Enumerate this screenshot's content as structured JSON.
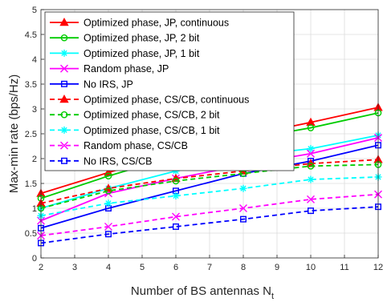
{
  "chart_data": {
    "type": "line",
    "xlabel": "Number of BS antennas N",
    "xlabel_sub": "t",
    "ylabel": "Max-min rate (bps/Hz)",
    "xlim": [
      2,
      12
    ],
    "ylim": [
      0,
      5
    ],
    "xticks": [
      2,
      3,
      4,
      5,
      6,
      7,
      8,
      9,
      10,
      11,
      12
    ],
    "yticks": [
      0,
      0.5,
      1,
      1.5,
      2,
      2.5,
      3,
      3.5,
      4,
      4.5,
      5
    ],
    "grid": true,
    "legend_position": "top-left",
    "x": [
      2,
      4,
      6,
      8,
      10,
      12
    ],
    "series": [
      {
        "name": "Optimized phase, JP, continuous",
        "values": [
          1.3,
          1.72,
          2.12,
          2.45,
          2.73,
          3.03
        ],
        "color": "#ff0000",
        "marker": "triangle",
        "dash": "solid"
      },
      {
        "name": "Optimized phase, JP, 2 bit",
        "values": [
          1.2,
          1.65,
          2.05,
          2.38,
          2.62,
          2.92
        ],
        "color": "#00cc00",
        "marker": "circle",
        "dash": "solid"
      },
      {
        "name": "Optimized phase, JP, 1 bit",
        "values": [
          1.0,
          1.4,
          1.75,
          2.05,
          2.2,
          2.47
        ],
        "color": "#00ffff",
        "marker": "asterisk",
        "dash": "solid"
      },
      {
        "name": "Random phase, JP",
        "values": [
          0.75,
          1.3,
          1.6,
          1.87,
          2.1,
          2.42
        ],
        "color": "#ff00ff",
        "marker": "x",
        "dash": "solid"
      },
      {
        "name": "No IRS, JP",
        "values": [
          0.6,
          1.0,
          1.35,
          1.7,
          1.95,
          2.27
        ],
        "color": "#0000ff",
        "marker": "square",
        "dash": "solid"
      },
      {
        "name": "Optimized phase, CS/CB, continuous",
        "values": [
          1.1,
          1.4,
          1.6,
          1.75,
          1.9,
          1.98
        ],
        "color": "#ff0000",
        "marker": "triangle",
        "dash": "dashed"
      },
      {
        "name": "Optimized phase, CS/CB, 2 bit",
        "values": [
          1.0,
          1.35,
          1.55,
          1.7,
          1.85,
          1.88
        ],
        "color": "#00cc00",
        "marker": "circle",
        "dash": "dashed"
      },
      {
        "name": "Optimized phase, CS/CB, 1 bit",
        "values": [
          0.85,
          1.1,
          1.25,
          1.4,
          1.58,
          1.63
        ],
        "color": "#00ffff",
        "marker": "asterisk",
        "dash": "dashed"
      },
      {
        "name": "Random phase, CS/CB",
        "values": [
          0.45,
          0.63,
          0.83,
          1.0,
          1.18,
          1.28
        ],
        "color": "#ff00ff",
        "marker": "x",
        "dash": "dashed"
      },
      {
        "name": "No IRS, CS/CB",
        "values": [
          0.3,
          0.48,
          0.63,
          0.78,
          0.95,
          1.03
        ],
        "color": "#0000ff",
        "marker": "square",
        "dash": "dashed"
      }
    ]
  }
}
